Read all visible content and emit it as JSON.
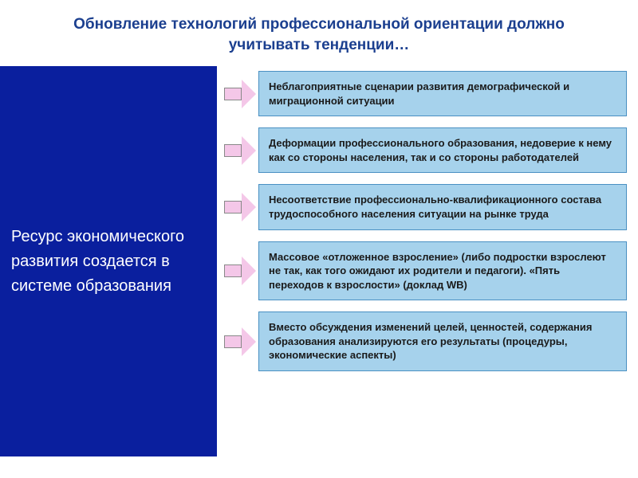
{
  "title": {
    "text": "Обновление технологий профессиональной ориентации должно учитывать тенденции…",
    "color": "#1b3f8f",
    "fontsize": 19
  },
  "left_panel": {
    "text": "Ресурс экономического развития создается в системе образования",
    "bg_color": "#0a1f9e",
    "text_color": "#ffffff",
    "fontsize": 20
  },
  "arrow": {
    "fill": "#f4c7e8",
    "border": "#888888"
  },
  "boxes": {
    "bg_color": "#a6d2ec",
    "border_color": "#4a90c2",
    "text_color": "#1a1a1a",
    "fontsize": 13
  },
  "items": [
    {
      "text": "Неблагоприятные сценарии развития демографической и миграционной ситуации"
    },
    {
      "text": "Деформации профессионального образования, недоверие к нему как со стороны населения, так и со стороны работодателей"
    },
    {
      "text": "Несоответствие профессионально-квалификационного состава трудоспособного населения ситуации на рынке труда"
    },
    {
      "text": "Массовое «отложенное взросление» (либо подростки взрослеют не так, как того ожидают их родители и педагоги).  «Пять переходов к взрослости» (доклад WB)"
    },
    {
      "text": "Вместо обсуждения изменений целей, ценностей, содержания образования анализируются его результаты (процедуры, экономические аспекты)"
    }
  ]
}
